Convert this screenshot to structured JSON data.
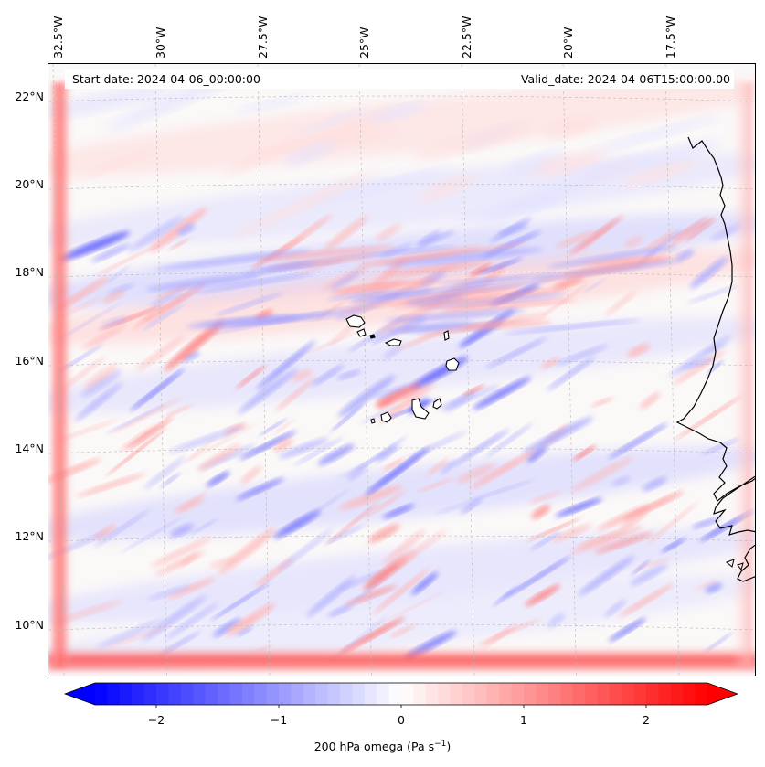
{
  "map": {
    "start_date": "Start date: 2024-04-06_00:00:00",
    "valid_date": "Valid_date: 2024-04-06T15:00:00.00",
    "longitude_labels": [
      "32.5°W",
      "30°W",
      "27.5°W",
      "25°W",
      "22.5°W",
      "20°W",
      "17.5°W"
    ],
    "latitude_labels": [
      "22°N",
      "20°N",
      "18°N",
      "16°N",
      "14°N",
      "12°N",
      "10°N"
    ],
    "extent": {
      "lon_min": -32.8,
      "lon_max": -15.3,
      "lat_min": 8.9,
      "lat_max": 22.7
    },
    "features": [
      "coastline West Africa",
      "Cape Verde islands"
    ],
    "field": "200 hPa omega"
  },
  "colorbar": {
    "title_main": "200 hPa omega (Pa s",
    "title_sup": "−1",
    "title_end": ")",
    "ticks": [
      "−2",
      "−1",
      "0",
      "1",
      "2"
    ],
    "tick_values": [
      -2,
      -1,
      0,
      1,
      2
    ],
    "range": [
      -2.5,
      2.5
    ],
    "extend": "both",
    "colors": {
      "min": "#0000ff",
      "mid": "#ffffff",
      "max": "#ff0000"
    }
  }
}
